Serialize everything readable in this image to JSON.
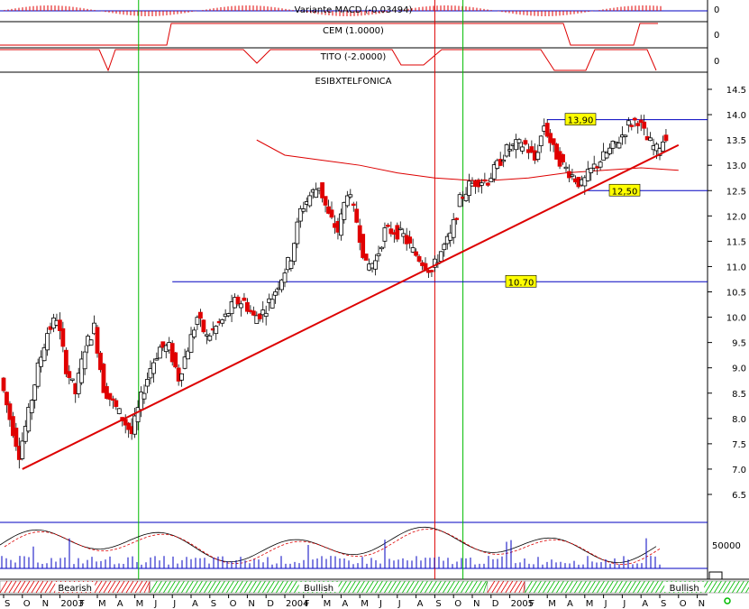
{
  "panels": {
    "macd": {
      "label": "Variante MACD (-0.03494)",
      "axis_label": "0"
    },
    "cem": {
      "label": "CEM (1.0000)",
      "axis_label": "0"
    },
    "tito": {
      "label": "TITO (-2.0000)",
      "axis_label": "0"
    },
    "price": {
      "label": "ESIBXTELFONICA"
    },
    "oscillator": {
      "axis_label": "50000"
    }
  },
  "price_levels": [
    {
      "label": "13,90",
      "value": 13.9
    },
    {
      "label": "12,50",
      "value": 12.5
    },
    {
      "label": "10.70",
      "value": 10.7
    }
  ],
  "regime_bands": [
    {
      "label": "Bearish",
      "start": 0,
      "end": 8
    },
    {
      "label": "Bullish",
      "start": 8,
      "end": 26
    },
    {
      "label": "",
      "start": 26,
      "end": 28
    },
    {
      "label": "Bullish",
      "start": 28,
      "end": 45
    }
  ],
  "colors": {
    "grid_blue": "#0000c0",
    "bear": "#e00000",
    "trend": "#dd0000",
    "green_line": "#00bb00",
    "label_bg": "#ffff00"
  },
  "chart_data": {
    "type": "candlestick",
    "title": "ESIBXTELFONICA",
    "x_months": [
      "S",
      "O",
      "N",
      "2003",
      "F",
      "M",
      "A",
      "M",
      "J",
      "J",
      "A",
      "S",
      "O",
      "N",
      "D",
      "2004",
      "F",
      "M",
      "A",
      "M",
      "J",
      "J",
      "A",
      "S",
      "O",
      "N",
      "D",
      "2005",
      "F",
      "M",
      "A",
      "M",
      "J",
      "J",
      "A",
      "S",
      "O",
      "N"
    ],
    "ylim": [
      6.5,
      14.5
    ],
    "y_ticks": [
      "14.5",
      "14.0",
      "13.5",
      "13.0",
      "12.5",
      "12.0",
      "11.5",
      "11.0",
      "10.5",
      "10.0",
      "9.5",
      "9.0",
      "8.5",
      "8.0",
      "7.5",
      "7.0",
      "6.5"
    ],
    "close_series": [
      [
        0,
        8.8
      ],
      [
        0.5,
        8.0
      ],
      [
        1,
        7.3
      ],
      [
        1.5,
        8.1
      ],
      [
        2,
        9.0
      ],
      [
        2.5,
        9.7
      ],
      [
        3,
        10.0
      ],
      [
        3.5,
        9.0
      ],
      [
        4,
        8.5
      ],
      [
        4.5,
        9.4
      ],
      [
        5,
        9.8
      ],
      [
        5.5,
        8.6
      ],
      [
        6,
        8.3
      ],
      [
        6.5,
        8.0
      ],
      [
        7,
        7.7
      ],
      [
        7.5,
        8.4
      ],
      [
        8,
        9.0
      ],
      [
        8.5,
        9.4
      ],
      [
        9,
        9.4
      ],
      [
        9.5,
        8.8
      ],
      [
        10,
        9.4
      ],
      [
        10.5,
        10.0
      ],
      [
        11,
        9.6
      ],
      [
        11.5,
        9.8
      ],
      [
        12,
        10.0
      ],
      [
        12.5,
        10.3
      ],
      [
        13,
        10.3
      ],
      [
        13.5,
        10.0
      ],
      [
        14,
        10.1
      ],
      [
        14.5,
        10.4
      ],
      [
        15,
        10.8
      ],
      [
        15.5,
        11.2
      ],
      [
        16,
        12.1
      ],
      [
        16.5,
        12.4
      ],
      [
        17,
        12.6
      ],
      [
        17.5,
        12.0
      ],
      [
        18,
        11.7
      ],
      [
        18.5,
        12.5
      ],
      [
        19,
        11.9
      ],
      [
        19.5,
        11.0
      ],
      [
        20,
        11.1
      ],
      [
        20.5,
        11.7
      ],
      [
        21,
        11.7
      ],
      [
        21.5,
        11.6
      ],
      [
        22,
        11.3
      ],
      [
        22.5,
        11.1
      ],
      [
        23,
        10.9
      ],
      [
        23.5,
        11.3
      ],
      [
        24,
        11.6
      ],
      [
        24.5,
        12.3
      ],
      [
        25,
        12.6
      ],
      [
        25.5,
        12.7
      ],
      [
        26,
        12.7
      ],
      [
        26.5,
        13.0
      ],
      [
        27,
        13.3
      ],
      [
        27.5,
        13.4
      ],
      [
        28,
        13.4
      ],
      [
        28.5,
        13.1
      ],
      [
        29,
        13.8
      ],
      [
        29.5,
        13.3
      ],
      [
        30,
        13.0
      ],
      [
        30.5,
        12.8
      ],
      [
        31,
        12.6
      ],
      [
        31.5,
        12.9
      ],
      [
        32,
        13.1
      ],
      [
        32.5,
        13.3
      ],
      [
        33,
        13.5
      ],
      [
        33.5,
        13.8
      ],
      [
        34,
        13.9
      ],
      [
        34.5,
        13.5
      ],
      [
        35,
        13.3
      ],
      [
        35.5,
        13.6
      ]
    ],
    "trendline": [
      [
        1,
        7.0
      ],
      [
        36,
        13.4
      ]
    ],
    "moving_average": [
      [
        13.5,
        13.5
      ],
      [
        15,
        13.2
      ],
      [
        17,
        13.1
      ],
      [
        19,
        13.0
      ],
      [
        21,
        12.85
      ],
      [
        23,
        12.75
      ],
      [
        25,
        12.7
      ],
      [
        26,
        12.7
      ],
      [
        28,
        12.75
      ],
      [
        30,
        12.85
      ],
      [
        32,
        12.9
      ],
      [
        34,
        12.95
      ],
      [
        36,
        12.9
      ]
    ],
    "vertical_markers": [
      {
        "x": 7.2,
        "color": "green"
      },
      {
        "x": 23.0,
        "color": "red"
      },
      {
        "x": 24.5,
        "color": "green"
      }
    ]
  }
}
